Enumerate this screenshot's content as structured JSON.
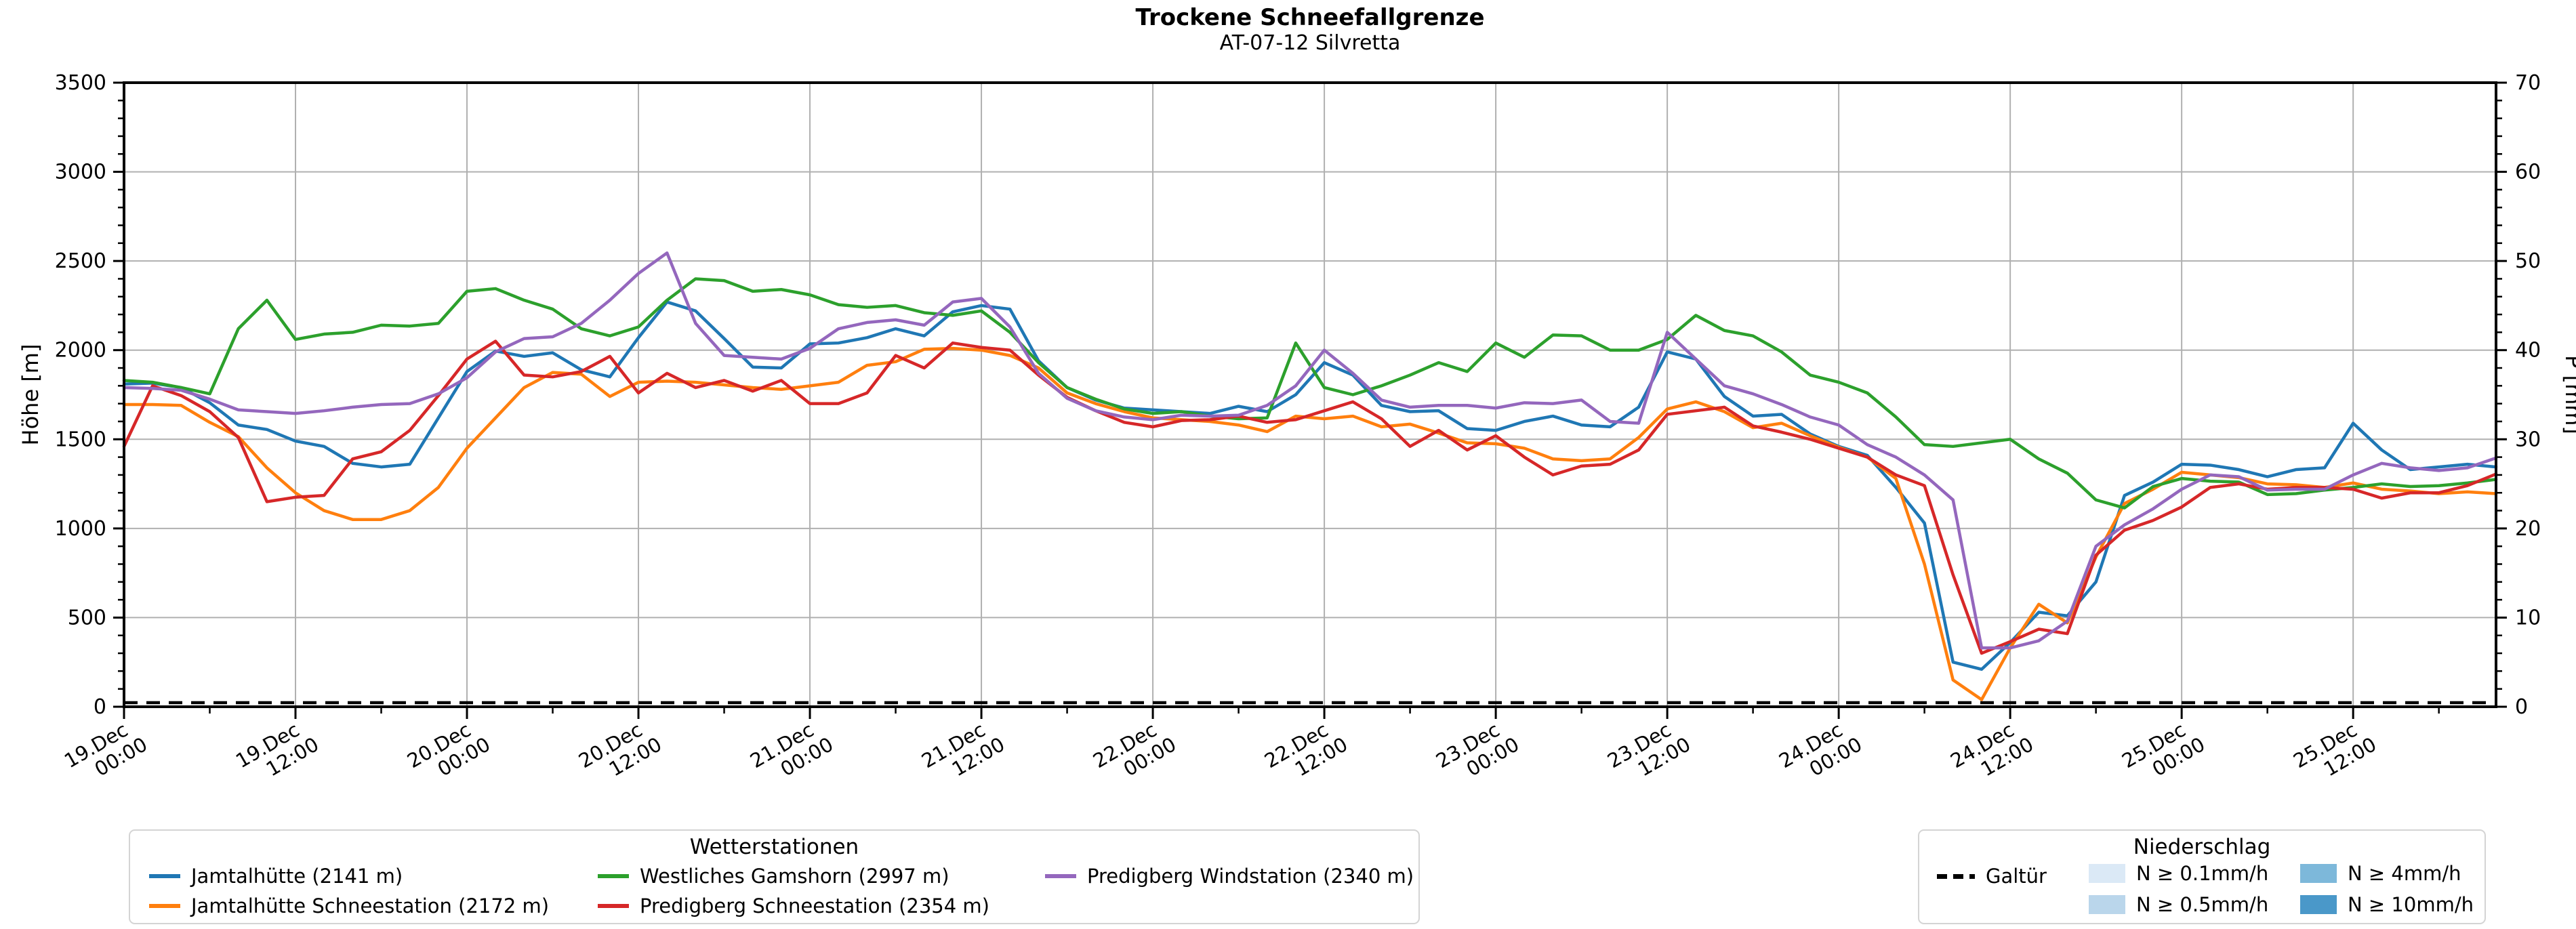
{
  "title": "Trockene Schneefallgrenze",
  "subtitle": "AT-07-12 Silvretta",
  "axes": {
    "left_label": "Höhe [m]",
    "right_label": "P [mm]",
    "y_left_ticks": [
      "0",
      "500",
      "1000",
      "1500",
      "2000",
      "2500",
      "3000",
      "3500"
    ],
    "y_right_ticks": [
      "0",
      "10",
      "20",
      "30",
      "40",
      "50",
      "60",
      "70"
    ],
    "x_ticks": [
      {
        "date": "19.Dec",
        "time": "00:00"
      },
      {
        "date": "19.Dec",
        "time": "12:00"
      },
      {
        "date": "20.Dec",
        "time": "00:00"
      },
      {
        "date": "20.Dec",
        "time": "12:00"
      },
      {
        "date": "21.Dec",
        "time": "00:00"
      },
      {
        "date": "21.Dec",
        "time": "12:00"
      },
      {
        "date": "22.Dec",
        "time": "00:00"
      },
      {
        "date": "22.Dec",
        "time": "12:00"
      },
      {
        "date": "23.Dec",
        "time": "00:00"
      },
      {
        "date": "23.Dec",
        "time": "12:00"
      },
      {
        "date": "24.Dec",
        "time": "00:00"
      },
      {
        "date": "24.Dec",
        "time": "12:00"
      },
      {
        "date": "25.Dec",
        "time": "00:00"
      },
      {
        "date": "25.Dec",
        "time": "12:00"
      }
    ]
  },
  "legend_stations": {
    "title": "Wetterstationen",
    "items": [
      {
        "label": "Jamtalhütte (2141 m)",
        "color": "#1f77b4"
      },
      {
        "label": "Jamtalhütte Schneestation (2172 m)",
        "color": "#ff7f0e"
      },
      {
        "label": "Westliches Gamshorn (2997 m)",
        "color": "#2ca02c"
      },
      {
        "label": "Predigberg Schneestation (2354 m)",
        "color": "#d62728"
      },
      {
        "label": "Predigberg Windstation (2340 m)",
        "color": "#9467bd"
      }
    ]
  },
  "legend_precip": {
    "title": "Niederschlag",
    "galtuer_label": "Galtür",
    "patches": [
      {
        "label": "N ≥ 0.1mm/h",
        "color": "#dbe9f6"
      },
      {
        "label": "N ≥ 0.5mm/h",
        "color": "#bad6eb"
      },
      {
        "label": "N ≥ 4mm/h",
        "color": "#7db8da"
      },
      {
        "label": "N ≥ 10mm/h",
        "color": "#4a98c9"
      }
    ]
  },
  "chart_data": {
    "type": "line",
    "title": "Trockene Schneefallgrenze",
    "subtitle": "AT-07-12 Silvretta",
    "xlabel": "",
    "ylabel": "Höhe [m]",
    "y2label": "P [mm]",
    "ylim": [
      0,
      3500
    ],
    "y2lim": [
      0,
      70
    ],
    "grid": true,
    "x_axis": "hours since 19.Dec 00:00",
    "x_hours": [
      0,
      2,
      4,
      6,
      8,
      10,
      12,
      14,
      16,
      18,
      20,
      22,
      24,
      26,
      28,
      30,
      32,
      34,
      36,
      38,
      40,
      42,
      44,
      46,
      48,
      50,
      52,
      54,
      56,
      58,
      60,
      62,
      64,
      66,
      68,
      70,
      72,
      74,
      76,
      78,
      80,
      82,
      84,
      86,
      88,
      90,
      92,
      94,
      96,
      98,
      100,
      102,
      104,
      106,
      108,
      110,
      112,
      114,
      116,
      118,
      120,
      122,
      124,
      126,
      128,
      130,
      132,
      134,
      136,
      138,
      140,
      142,
      144,
      146,
      148,
      150,
      152,
      154,
      156,
      158,
      160,
      162,
      164,
      166
    ],
    "series": [
      {
        "name": "Jamtalhütte (2141 m)",
        "color": "#1f77b4",
        "values": [
          1810,
          1815,
          1790,
          1705,
          1580,
          1555,
          1490,
          1460,
          1365,
          1345,
          1360,
          1620,
          1880,
          1995,
          1965,
          1985,
          1890,
          1850,
          2070,
          2270,
          2220,
          2065,
          1905,
          1900,
          2035,
          2040,
          2070,
          2120,
          2080,
          2215,
          2250,
          2230,
          1940,
          1790,
          1720,
          1675,
          1665,
          1655,
          1645,
          1685,
          1655,
          1750,
          1930,
          1860,
          1690,
          1655,
          1660,
          1560,
          1550,
          1600,
          1630,
          1580,
          1570,
          1680,
          1990,
          1950,
          1740,
          1630,
          1640,
          1530,
          1460,
          1410,
          1230,
          1030,
          250,
          210,
          360,
          530,
          510,
          700,
          1185,
          1260,
          1360,
          1355,
          1330,
          1290,
          1330,
          1340,
          1590,
          1440,
          1330,
          1345,
          1360,
          1345
        ]
      },
      {
        "name": "Jamtalhütte Schneestation (2172 m)",
        "color": "#ff7f0e",
        "values": [
          1695,
          1695,
          1690,
          1595,
          1515,
          1340,
          1200,
          1100,
          1050,
          1050,
          1100,
          1230,
          1450,
          1620,
          1790,
          1875,
          1865,
          1740,
          1820,
          1826,
          1820,
          1805,
          1790,
          1780,
          1800,
          1820,
          1915,
          1935,
          2005,
          2010,
          2000,
          1970,
          1900,
          1760,
          1700,
          1655,
          1620,
          1610,
          1600,
          1580,
          1543,
          1630,
          1615,
          1630,
          1570,
          1585,
          1535,
          1480,
          1475,
          1450,
          1390,
          1380,
          1390,
          1510,
          1670,
          1710,
          1655,
          1565,
          1590,
          1520,
          1455,
          1400,
          1280,
          800,
          150,
          40,
          330,
          575,
          470,
          840,
          1140,
          1220,
          1315,
          1300,
          1285,
          1250,
          1245,
          1230,
          1255,
          1220,
          1210,
          1195,
          1205,
          1195
        ]
      },
      {
        "name": "Westliches Gamshorn (2997 m)",
        "color": "#2ca02c",
        "values": [
          1830,
          1820,
          1790,
          1755,
          2120,
          2280,
          2060,
          2090,
          2100,
          2140,
          2135,
          2150,
          2330,
          2345,
          2280,
          2230,
          2120,
          2080,
          2130,
          2280,
          2400,
          2390,
          2330,
          2340,
          2310,
          2255,
          2240,
          2250,
          2210,
          2195,
          2220,
          2100,
          1930,
          1790,
          1725,
          1670,
          1645,
          1655,
          1630,
          1615,
          1620,
          2040,
          1790,
          1750,
          1800,
          1860,
          1930,
          1880,
          2040,
          1960,
          2085,
          2080,
          2000,
          2000,
          2060,
          2195,
          2110,
          2080,
          1990,
          1860,
          1820,
          1760,
          1625,
          1470,
          1460,
          1480,
          1500,
          1390,
          1310,
          1160,
          1115,
          1235,
          1280,
          1265,
          1260,
          1190,
          1195,
          1215,
          1230,
          1250,
          1235,
          1240,
          1255,
          1275
        ]
      },
      {
        "name": "Predigberg Schneestation (2354 m)",
        "color": "#d62728",
        "values": [
          1460,
          1800,
          1745,
          1655,
          1510,
          1150,
          1175,
          1185,
          1390,
          1430,
          1550,
          1745,
          1950,
          2050,
          1860,
          1850,
          1880,
          1965,
          1760,
          1870,
          1790,
          1830,
          1770,
          1830,
          1700,
          1700,
          1760,
          1970,
          1900,
          2040,
          2015,
          2000,
          1860,
          1735,
          1660,
          1595,
          1570,
          1605,
          1610,
          1630,
          1595,
          1610,
          1660,
          1710,
          1615,
          1460,
          1550,
          1440,
          1520,
          1400,
          1300,
          1350,
          1360,
          1440,
          1640,
          1660,
          1680,
          1575,
          1540,
          1500,
          1450,
          1400,
          1300,
          1240,
          740,
          300,
          365,
          435,
          410,
          850,
          990,
          1045,
          1120,
          1230,
          1250,
          1220,
          1230,
          1230,
          1220,
          1170,
          1200,
          1200,
          1240,
          1305
        ]
      },
      {
        "name": "Predigberg Windstation (2340 m)",
        "color": "#9467bd",
        "values": [
          1790,
          1785,
          1775,
          1725,
          1665,
          1655,
          1645,
          1660,
          1680,
          1695,
          1700,
          1755,
          1845,
          1990,
          2065,
          2075,
          2150,
          2280,
          2430,
          2545,
          2150,
          1970,
          1960,
          1950,
          2010,
          2120,
          2155,
          2170,
          2140,
          2270,
          2290,
          2130,
          1870,
          1730,
          1660,
          1625,
          1610,
          1635,
          1630,
          1635,
          1690,
          1800,
          2000,
          1870,
          1720,
          1680,
          1690,
          1690,
          1675,
          1705,
          1700,
          1720,
          1600,
          1590,
          2100,
          1950,
          1800,
          1755,
          1695,
          1625,
          1580,
          1470,
          1400,
          1300,
          1160,
          330,
          330,
          370,
          480,
          900,
          1020,
          1110,
          1220,
          1300,
          1290,
          1215,
          1220,
          1220,
          1300,
          1365,
          1340,
          1325,
          1340,
          1395
        ]
      }
    ],
    "galtuer": {
      "name": "Galtür",
      "axis": "right",
      "style": "dashed",
      "color": "#000000",
      "value_mm": 0
    },
    "legend_position": "below"
  }
}
